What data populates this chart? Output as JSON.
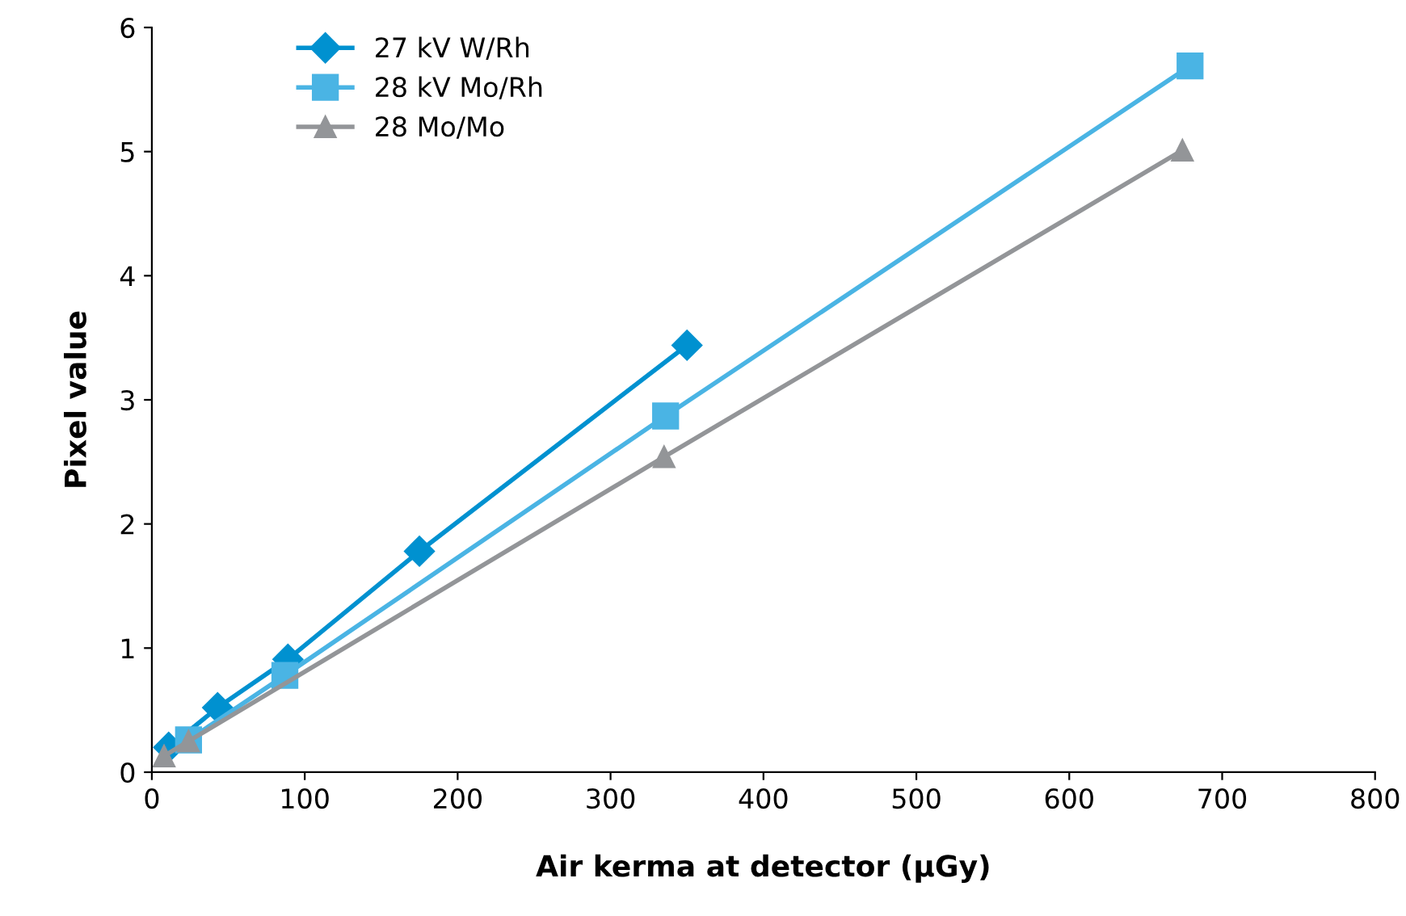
{
  "chart_data": {
    "type": "line",
    "xlabel": "Air kerma at detector (µGy)",
    "ylabel": "Pixel value",
    "xlim": [
      0,
      800
    ],
    "xticks": [
      0,
      100,
      200,
      300,
      400,
      500,
      600,
      700,
      800
    ],
    "ylim": [
      0,
      6
    ],
    "yticks": [
      0,
      1,
      2,
      3,
      4,
      5,
      6
    ],
    "grid": false,
    "legend": "top left",
    "series": [
      {
        "name": "27 kV W/Rh",
        "color": "#0091d0",
        "marker": "diamond",
        "x": [
          11,
          43,
          89,
          175,
          350
        ],
        "values": [
          0.2,
          0.52,
          0.91,
          1.78,
          3.44
        ]
      },
      {
        "name": "28 kV Mo/Rh",
        "color": "#4ab4e4",
        "marker": "square",
        "x": [
          24,
          87,
          336,
          679
        ],
        "values": [
          0.26,
          0.78,
          2.87,
          5.69
        ]
      },
      {
        "name": "28 Mo/Mo",
        "color": "#939598",
        "marker": "triangle",
        "x": [
          8,
          24,
          335,
          674
        ],
        "values": [
          0.13,
          0.25,
          2.54,
          5.01
        ]
      }
    ]
  }
}
